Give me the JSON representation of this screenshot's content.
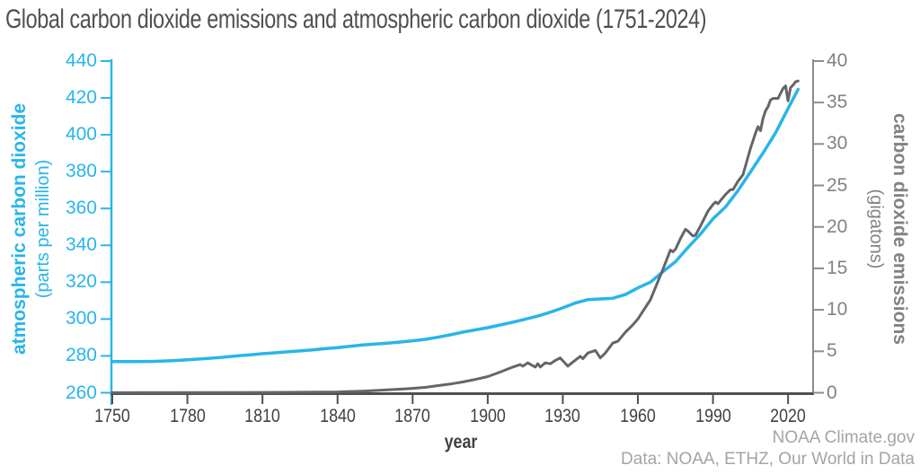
{
  "attribution": {
    "line1": "NOAA Climate.gov",
    "line2": "Data: NOAA, ETHZ, Our World in Data"
  },
  "chart_data": {
    "type": "line",
    "title": "Global carbon dioxide emissions and atmospheric carbon dioxide (1751-2024)",
    "xlabel": "year",
    "grid": false,
    "legend": "none",
    "x_range": [
      1750,
      2030
    ],
    "x_ticks": [
      1750,
      1780,
      1810,
      1840,
      1870,
      1900,
      1930,
      1960,
      1990,
      2020
    ],
    "left_axis": {
      "label": "atmospheric carbon dioxide",
      "sublabel": "(parts per million)",
      "range": [
        260,
        440
      ],
      "ticks": [
        260,
        280,
        300,
        320,
        340,
        360,
        380,
        400,
        420,
        440
      ],
      "color": "#29b5ea"
    },
    "right_axis": {
      "label": "carbon dioxide emissions",
      "sublabel": "(gigatons)",
      "range": [
        0,
        40
      ],
      "ticks": [
        0,
        5,
        10,
        15,
        20,
        25,
        30,
        35,
        40
      ],
      "color": "#808285"
    },
    "series": [
      {
        "name": "atmospheric carbon dioxide (ppm)",
        "axis": "left",
        "color": "#29b5ea",
        "points": [
          [
            1750,
            276.9
          ],
          [
            1755,
            276.9
          ],
          [
            1760,
            276.9
          ],
          [
            1765,
            277.0
          ],
          [
            1770,
            277.2
          ],
          [
            1775,
            277.5
          ],
          [
            1780,
            277.9
          ],
          [
            1785,
            278.3
          ],
          [
            1790,
            278.8
          ],
          [
            1795,
            279.4
          ],
          [
            1800,
            280.0
          ],
          [
            1805,
            280.6
          ],
          [
            1810,
            281.2
          ],
          [
            1815,
            281.7
          ],
          [
            1820,
            282.2
          ],
          [
            1825,
            282.7
          ],
          [
            1830,
            283.3
          ],
          [
            1835,
            283.9
          ],
          [
            1840,
            284.5
          ],
          [
            1845,
            285.2
          ],
          [
            1850,
            285.9
          ],
          [
            1855,
            286.4
          ],
          [
            1860,
            286.9
          ],
          [
            1865,
            287.5
          ],
          [
            1870,
            288.2
          ],
          [
            1875,
            289.0
          ],
          [
            1880,
            290.1
          ],
          [
            1885,
            291.4
          ],
          [
            1890,
            292.9
          ],
          [
            1895,
            294.1
          ],
          [
            1900,
            295.3
          ],
          [
            1905,
            296.8
          ],
          [
            1910,
            298.3
          ],
          [
            1915,
            299.9
          ],
          [
            1920,
            301.6
          ],
          [
            1925,
            303.7
          ],
          [
            1930,
            306.1
          ],
          [
            1935,
            308.7
          ],
          [
            1940,
            310.5
          ],
          [
            1945,
            310.9
          ],
          [
            1950,
            311.3
          ],
          [
            1955,
            313.3
          ],
          [
            1960,
            316.9
          ],
          [
            1965,
            320.0
          ],
          [
            1970,
            325.7
          ],
          [
            1975,
            331.1
          ],
          [
            1980,
            338.8
          ],
          [
            1985,
            346.1
          ],
          [
            1990,
            354.4
          ],
          [
            1995,
            360.8
          ],
          [
            2000,
            369.7
          ],
          [
            2005,
            379.9
          ],
          [
            2010,
            390.1
          ],
          [
            2015,
            401.0
          ],
          [
            2020,
            414.2
          ],
          [
            2024,
            424.6
          ]
        ]
      },
      {
        "name": "carbon dioxide emissions (gigatons)",
        "axis": "right",
        "color": "#646569",
        "points": [
          [
            1750,
            0.01
          ],
          [
            1800,
            0.03
          ],
          [
            1820,
            0.05
          ],
          [
            1840,
            0.1
          ],
          [
            1850,
            0.2
          ],
          [
            1855,
            0.27
          ],
          [
            1860,
            0.35
          ],
          [
            1865,
            0.43
          ],
          [
            1870,
            0.53
          ],
          [
            1875,
            0.65
          ],
          [
            1880,
            0.85
          ],
          [
            1885,
            1.05
          ],
          [
            1890,
            1.3
          ],
          [
            1895,
            1.6
          ],
          [
            1900,
            1.95
          ],
          [
            1905,
            2.5
          ],
          [
            1910,
            3.1
          ],
          [
            1913,
            3.4
          ],
          [
            1914,
            3.2
          ],
          [
            1916,
            3.6
          ],
          [
            1919,
            3.1
          ],
          [
            1920,
            3.5
          ],
          [
            1921,
            3.1
          ],
          [
            1923,
            3.6
          ],
          [
            1925,
            3.5
          ],
          [
            1927,
            3.9
          ],
          [
            1929,
            4.2
          ],
          [
            1932,
            3.2
          ],
          [
            1934,
            3.7
          ],
          [
            1937,
            4.4
          ],
          [
            1938,
            4.1
          ],
          [
            1940,
            4.8
          ],
          [
            1943,
            5.1
          ],
          [
            1945,
            4.2
          ],
          [
            1947,
            4.8
          ],
          [
            1950,
            6.0
          ],
          [
            1952,
            6.2
          ],
          [
            1955,
            7.3
          ],
          [
            1958,
            8.2
          ],
          [
            1960,
            8.9
          ],
          [
            1965,
            11.2
          ],
          [
            1970,
            14.9
          ],
          [
            1973,
            17.2
          ],
          [
            1974,
            17.0
          ],
          [
            1975,
            17.3
          ],
          [
            1977,
            18.6
          ],
          [
            1979,
            19.7
          ],
          [
            1980,
            19.5
          ],
          [
            1982,
            18.9
          ],
          [
            1983,
            19.0
          ],
          [
            1985,
            20.1
          ],
          [
            1988,
            21.9
          ],
          [
            1990,
            22.7
          ],
          [
            1991,
            23.0
          ],
          [
            1992,
            22.8
          ],
          [
            1995,
            23.9
          ],
          [
            1997,
            24.5
          ],
          [
            1998,
            24.5
          ],
          [
            2000,
            25.5
          ],
          [
            2002,
            26.3
          ],
          [
            2005,
            29.5
          ],
          [
            2007,
            31.3
          ],
          [
            2008,
            32.1
          ],
          [
            2009,
            31.6
          ],
          [
            2010,
            33.1
          ],
          [
            2011,
            34.0
          ],
          [
            2012,
            34.5
          ],
          [
            2013,
            35.3
          ],
          [
            2014,
            35.5
          ],
          [
            2015,
            35.5
          ],
          [
            2016,
            35.5
          ],
          [
            2017,
            36.1
          ],
          [
            2018,
            36.7
          ],
          [
            2019,
            37.0
          ],
          [
            2020,
            35.2
          ],
          [
            2021,
            36.8
          ],
          [
            2022,
            37.1
          ],
          [
            2023,
            37.5
          ],
          [
            2024,
            37.6
          ]
        ]
      }
    ]
  }
}
